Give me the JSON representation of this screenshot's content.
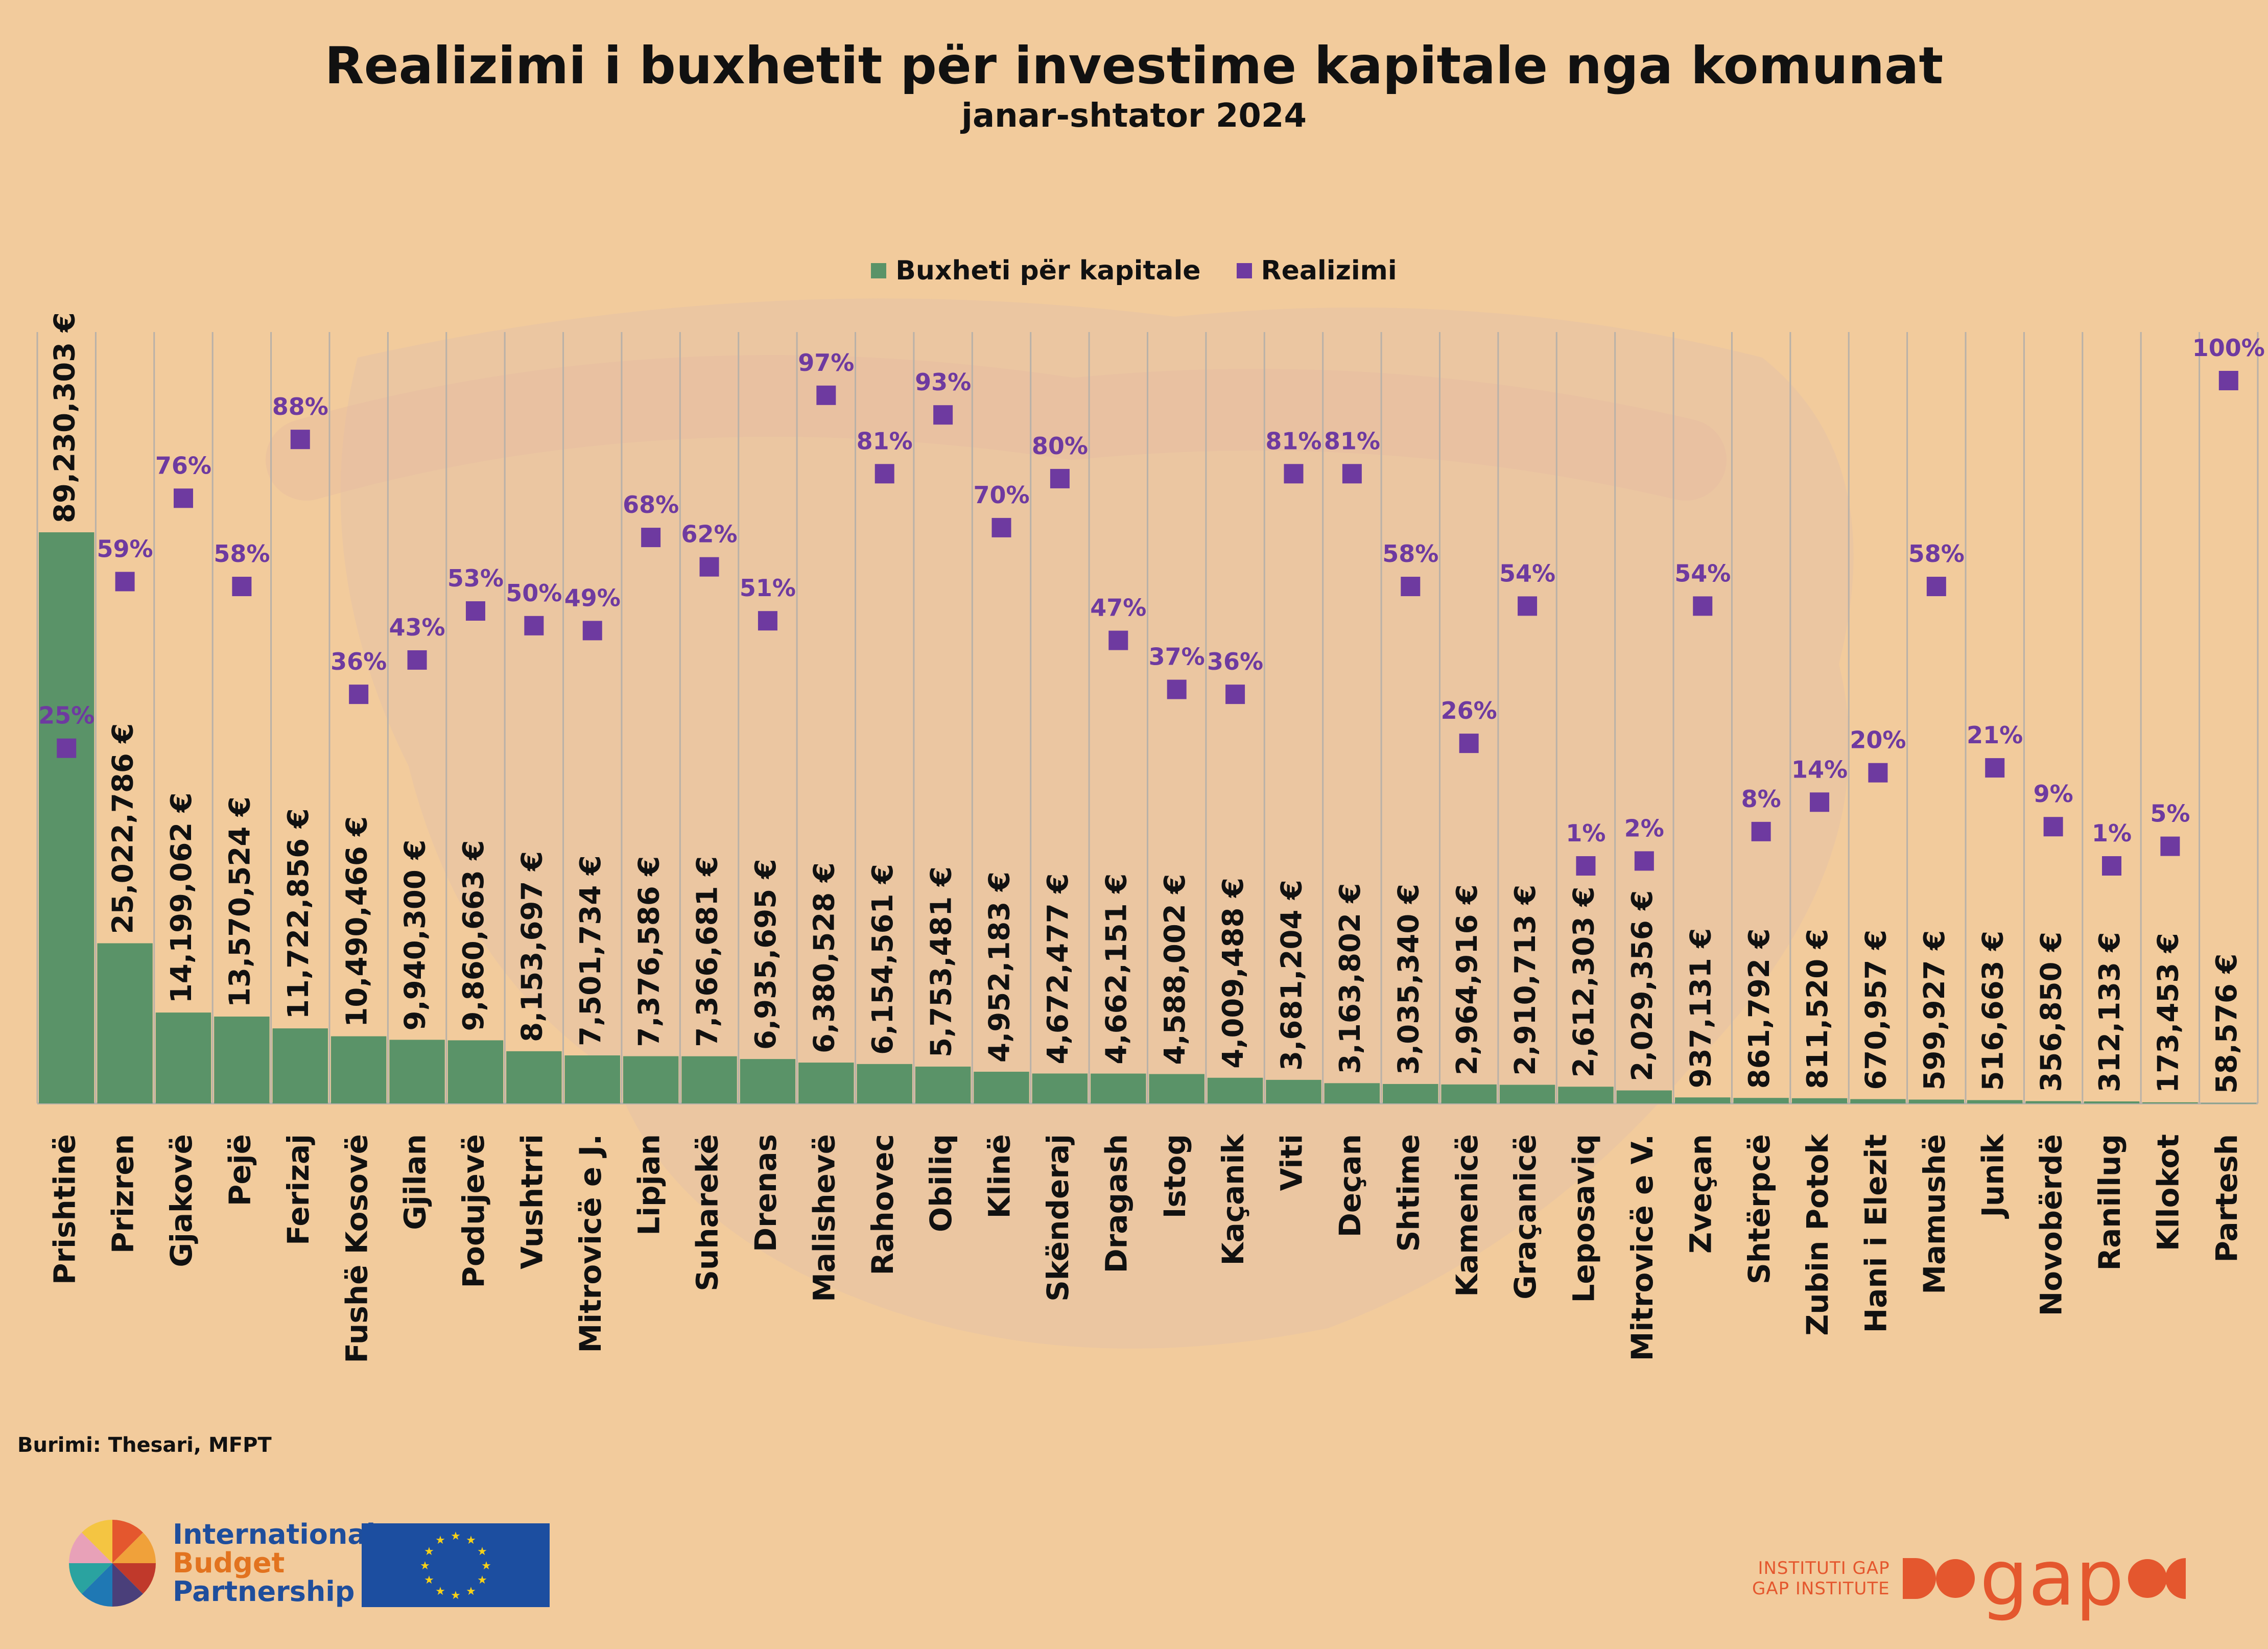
{
  "title": "Realizimi i buxhetit për investime kapitale nga komunat",
  "subtitle": "janar-shtator 2024",
  "legend": {
    "bar_label": "Buxheti për kapitale",
    "point_label": "Realizimi"
  },
  "source": "Burimi: Thesari, MFPT",
  "logos": {
    "ibp_line1": "International",
    "ibp_line2": "Budget",
    "ibp_line3": "Partnership",
    "gap_line1": "INSTITUTI GAP",
    "gap_line2": "GAP INSTITUTE",
    "gap_word": "gap"
  },
  "colors": {
    "background": "#f2cb9c",
    "bar": "#5a9368",
    "point": "#6e3aa0",
    "point_label": "#6e3aa0",
    "text": "#111111",
    "gridline": "#b9b1a8"
  },
  "chart_data": {
    "type": "bar",
    "categories": [
      "Prishtinë",
      "Prizren",
      "Gjakovë",
      "Pejë",
      "Ferizaj",
      "Fushë Kosovë",
      "Gjilan",
      "Podujevë",
      "Vushtrri",
      "Mitrovicë e J.",
      "Lipjan",
      "Suharekë",
      "Drenas",
      "Malishevë",
      "Rahovec",
      "Obiliq",
      "Klinë",
      "Skënderaj",
      "Dragash",
      "Istog",
      "Kaçanik",
      "Viti",
      "Deçan",
      "Shtime",
      "Kamenicë",
      "Graçanicë",
      "Leposaviq",
      "Mitrovicë e V.",
      "Zveçan",
      "Shtërpcë",
      "Zubin Potok",
      "Hani i Elezit",
      "Mamushë",
      "Junik",
      "Novobërdë",
      "Ranillug",
      "Kllokot",
      "Partesh"
    ],
    "series": [
      {
        "name": "Buxheti për kapitale",
        "type": "bar",
        "values": [
          89230303,
          25022786,
          14199062,
          13570524,
          11722856,
          10490466,
          9940300,
          9860663,
          8153697,
          7501734,
          7376586,
          7366681,
          6935695,
          6380528,
          6154561,
          5753481,
          4952183,
          4672477,
          4662151,
          4588002,
          4009488,
          3681204,
          3163802,
          3035340,
          2964916,
          2910713,
          2612303,
          2029356,
          937131,
          861792,
          811520,
          670957,
          599927,
          516663,
          356850,
          312133,
          173453,
          58576
        ],
        "labels": [
          "89,230,303 €",
          "25,022,786 €",
          "14,199,062 €",
          "13,570,524 €",
          "11,722,856 €",
          "10,490,466 €",
          "9,940,300 €",
          "9,860,663 €",
          "8,153,697 €",
          "7,501,734 €",
          "7,376,586 €",
          "7,366,681 €",
          "6,935,695 €",
          "6,380,528 €",
          "6,154,561 €",
          "5,753,481 €",
          "4,952,183 €",
          "4,672,477 €",
          "4,662,151 €",
          "4,588,002 €",
          "4,009,488 €",
          "3,681,204 €",
          "3,163,802 €",
          "3,035,340 €",
          "2,964,916 €",
          "2,910,713 €",
          "2,612,303 €",
          "2,029,356 €",
          "937,131 €",
          "861,792 €",
          "811,520 €",
          "670,957 €",
          "599,927 €",
          "516,663 €",
          "356,850 €",
          "312,133 €",
          "173,453 €",
          "58,576 €"
        ]
      },
      {
        "name": "Realizimi",
        "type": "scatter",
        "values": [
          25,
          59,
          76,
          58,
          88,
          36,
          43,
          53,
          50,
          49,
          68,
          62,
          51,
          97,
          81,
          93,
          70,
          80,
          47,
          37,
          36,
          81,
          81,
          58,
          26,
          54,
          1,
          2,
          54,
          8,
          14,
          20,
          58,
          21,
          9,
          1,
          5,
          100
        ],
        "labels": [
          "25%",
          "59%",
          "76%",
          "58%",
          "88%",
          "36%",
          "43%",
          "53%",
          "50%",
          "49%",
          "68%",
          "62%",
          "51%",
          "97%",
          "81%",
          "93%",
          "70%",
          "80%",
          "47%",
          "37%",
          "36%",
          "81%",
          "81%",
          "58%",
          "26%",
          "54%",
          "1%",
          "2%",
          "54%",
          "8%",
          "14%",
          "20%",
          "58%",
          "21%",
          "9%",
          "1%",
          "5%",
          "100%"
        ]
      }
    ],
    "grid": true,
    "legend_position": "top-center"
  }
}
